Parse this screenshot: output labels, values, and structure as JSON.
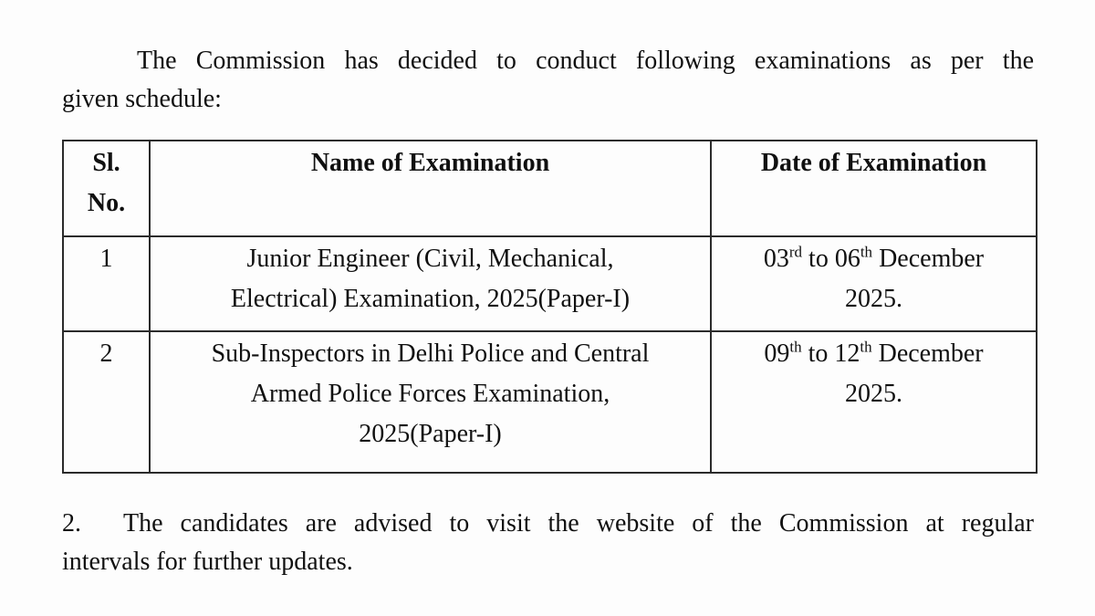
{
  "page": {
    "background_color": "#fdfdfd",
    "text_color": "#101010",
    "border_color": "#2b2b2b"
  },
  "intro": {
    "line1": "The Commission has decided to conduct following examinations as per the",
    "line2": "given schedule:"
  },
  "table": {
    "headers": {
      "sl_no_line1": "Sl.",
      "sl_no_line2": "No.",
      "name": "Name of Examination",
      "date": "Date of Examination"
    },
    "rows": [
      {
        "sl_no": "1",
        "name_lines": {
          "0": "Junior Engineer (Civil, Mechanical,",
          "1": "Electrical) Examination, 2025(Paper-I)"
        },
        "date": {
          "day_from": "03",
          "suffix_from": "rd",
          "to_text": " to ",
          "day_to": "06",
          "suffix_to": "th",
          "month_text": " December",
          "year_line": "2025."
        }
      },
      {
        "sl_no": "2",
        "name_lines": {
          "0": "Sub-Inspectors in Delhi Police and Central",
          "1": "Armed Police Forces Examination,",
          "2": "2025(Paper-I)"
        },
        "date": {
          "day_from": "09",
          "suffix_from": "th",
          "to_text": " to ",
          "day_to": "12",
          "suffix_to": "th",
          "month_text": " December",
          "year_line": "2025."
        }
      }
    ]
  },
  "footer": {
    "number": "2.",
    "line1": "The candidates are advised to visit the website of the Commission at regular",
    "line2": "intervals for further updates."
  }
}
